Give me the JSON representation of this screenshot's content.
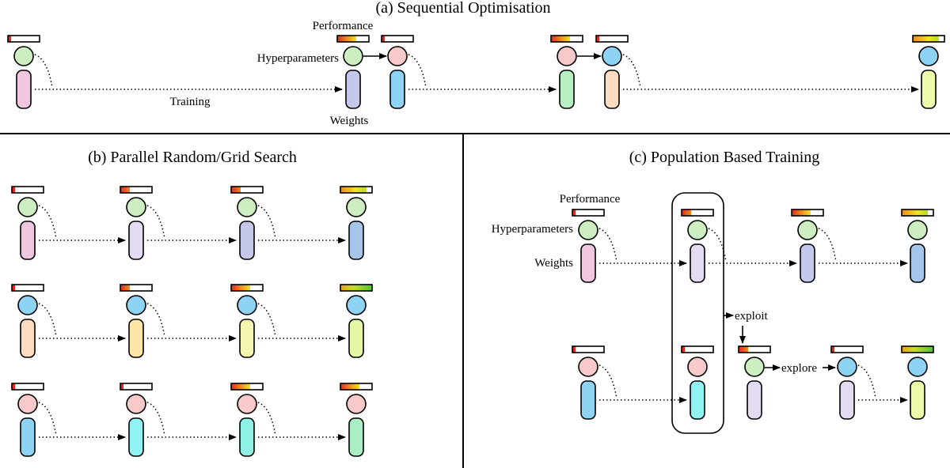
{
  "panels": {
    "a": {
      "title": "(a) Sequential Optimisation",
      "labels": {
        "performance": "Performance",
        "hyperparameters": "Hyperparameters",
        "training": "Training",
        "weights": "Weights"
      }
    },
    "b": {
      "title": "(b) Parallel Random/Grid Search"
    },
    "c": {
      "title": "(c) Population Based Training",
      "labels": {
        "performance": "Performance",
        "hyperparameters": "Hyperparameters",
        "weights": "Weights",
        "exploit": "exploit",
        "explore": "explore"
      }
    }
  },
  "colors": {
    "green_head": "#cdeec0",
    "pink_head": "#f7c9c9",
    "blue_head": "#8fd3f4",
    "perf_red": "#e8261f",
    "perf_orange": "#f08a1c",
    "perf_yellow": "#f2e21f",
    "perf_green": "#52c431"
  }
}
